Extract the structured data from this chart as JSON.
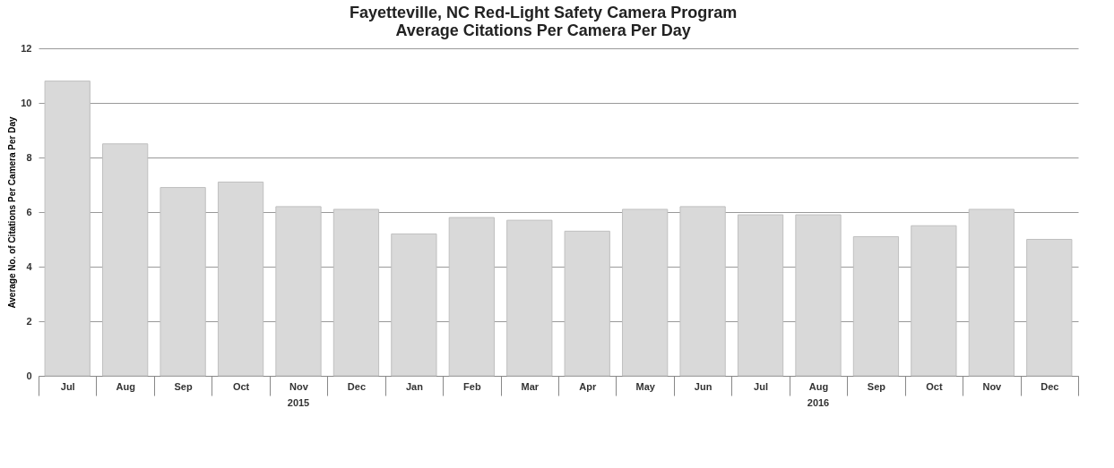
{
  "chart_data": {
    "type": "bar",
    "title": "Fayetteville, NC Red-Light Safety Camera Program",
    "subtitle": "Average Citations Per Camera Per Day",
    "ylabel": "Average No. of Citations Per Camera Per Day",
    "categories": [
      "Jul",
      "Aug",
      "Sep",
      "Oct",
      "Nov",
      "Dec",
      "Jan",
      "Feb",
      "Mar",
      "Apr",
      "May",
      "Jun",
      "Jul",
      "Aug",
      "Sep",
      "Oct",
      "Nov",
      "Dec"
    ],
    "values": [
      10.8,
      8.5,
      6.9,
      7.1,
      6.2,
      6.1,
      5.2,
      5.8,
      5.7,
      5.3,
      6.1,
      6.2,
      5.9,
      5.9,
      5.1,
      5.5,
      6.1,
      5.0
    ],
    "color": "#d9d9d9",
    "ylim": [
      0,
      12
    ],
    "yticks": [
      0,
      2,
      4,
      6,
      8,
      10,
      12
    ],
    "grid": "y",
    "annotations": [
      "2015",
      "2016"
    ]
  }
}
